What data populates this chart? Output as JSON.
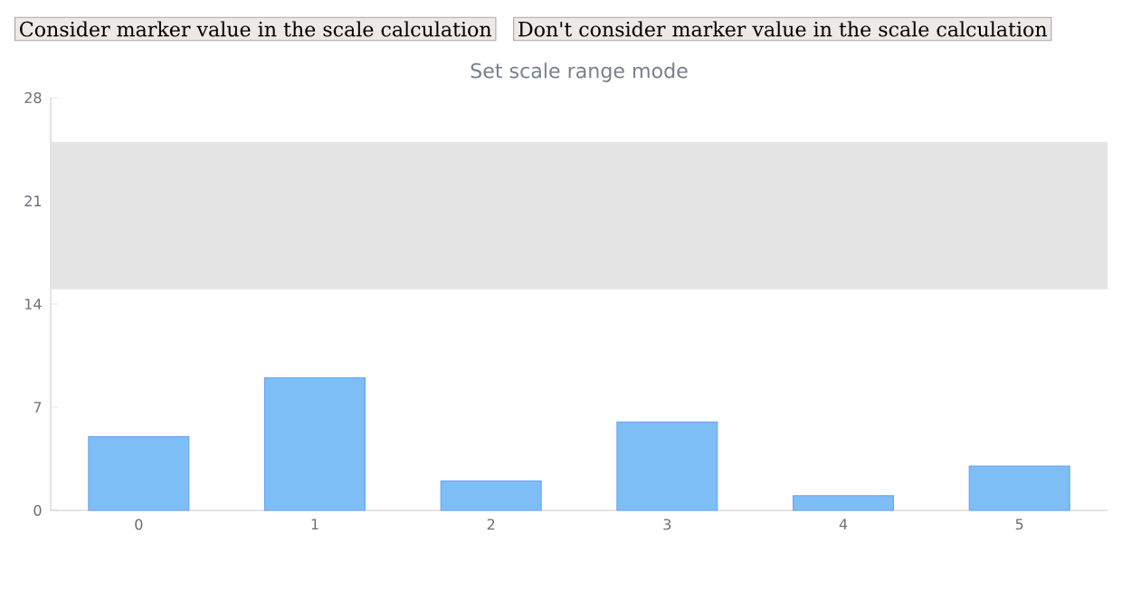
{
  "chart_data": {
    "type": "bar",
    "title": "Set scale range mode",
    "annotations": [
      "Consider marker value in the scale calculation",
      "Don't consider marker value in the scale calculation"
    ],
    "categories": [
      "0",
      "1",
      "2",
      "3",
      "4",
      "5"
    ],
    "values": [
      5,
      9,
      2,
      6,
      1,
      3
    ],
    "color": "#7cbef5",
    "ylim": [
      0,
      28
    ],
    "yticks": [
      0,
      7,
      14,
      21,
      28
    ],
    "bands": [
      {
        "axis": "y",
        "from": 15,
        "to": 25,
        "color": "#e5e5e5"
      }
    ]
  }
}
